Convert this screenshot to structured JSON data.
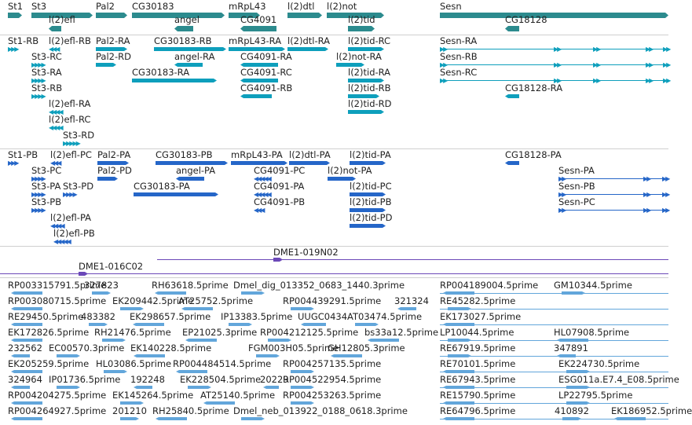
{
  "colors": {
    "gene": "#2c8b8e",
    "transcript_ra": "#0e9fbc",
    "transcript_pa": "#2566c8",
    "bac": "#6b48b8",
    "est": "#62a6db",
    "separator": "#cfcfcf"
  },
  "tracks": {
    "genes": {
      "items": [
        {
          "label": "St1",
          "dir": "r",
          "row": 0
        },
        {
          "label": "St3",
          "dir": "r",
          "row": 0
        },
        {
          "label": "Pal2",
          "dir": "r",
          "row": 0
        },
        {
          "label": "CG30183",
          "dir": "r",
          "row": 0
        },
        {
          "label": "mRpL43",
          "dir": "r",
          "row": 0
        },
        {
          "label": "l(2)dtl",
          "dir": "r",
          "row": 0
        },
        {
          "label": "l(2)not",
          "dir": "r",
          "row": 0
        },
        {
          "label": "Sesn",
          "dir": "r",
          "row": 0
        },
        {
          "label": "l(2)efl",
          "dir": "l",
          "row": 1
        },
        {
          "label": "angel",
          "dir": "l",
          "row": 1
        },
        {
          "label": "CG4091",
          "dir": "l",
          "row": 1
        },
        {
          "label": "l(2)tid",
          "dir": "r",
          "row": 1
        },
        {
          "label": "CG18128",
          "dir": "l",
          "row": 1
        }
      ]
    },
    "transcripts_r": {
      "items": [
        {
          "label": "St1-RB",
          "dir": "r"
        },
        {
          "label": "l(2)efl-RB",
          "dir": "l"
        },
        {
          "label": "Pal2-RA",
          "dir": "r"
        },
        {
          "label": "CG30183-RB",
          "dir": "r"
        },
        {
          "label": "mRpL43-RA",
          "dir": "r"
        },
        {
          "label": "l(2)dtl-RA",
          "dir": "r"
        },
        {
          "label": "l(2)tid-RC",
          "dir": "r"
        },
        {
          "label": "Sesn-RA",
          "dir": "r"
        },
        {
          "label": "St3-RC",
          "dir": "r"
        },
        {
          "label": "Pal2-RD",
          "dir": "r"
        },
        {
          "label": "angel-RA",
          "dir": "l"
        },
        {
          "label": "CG4091-RA",
          "dir": "l"
        },
        {
          "label": "l(2)not-RA",
          "dir": "r"
        },
        {
          "label": "Sesn-RB",
          "dir": "r"
        },
        {
          "label": "St3-RA",
          "dir": "r"
        },
        {
          "label": "CG30183-RA",
          "dir": "r"
        },
        {
          "label": "CG4091-RC",
          "dir": "l"
        },
        {
          "label": "l(2)tid-RA",
          "dir": "r"
        },
        {
          "label": "Sesn-RC",
          "dir": "r"
        },
        {
          "label": "St3-RB",
          "dir": "r"
        },
        {
          "label": "CG4091-RB",
          "dir": "l"
        },
        {
          "label": "l(2)tid-RB",
          "dir": "r"
        },
        {
          "label": "CG18128-RA",
          "dir": "l"
        },
        {
          "label": "l(2)efl-RA",
          "dir": "l"
        },
        {
          "label": "l(2)tid-RD",
          "dir": "r"
        },
        {
          "label": "l(2)efl-RC",
          "dir": "l"
        },
        {
          "label": "St3-RD",
          "dir": "r"
        }
      ]
    },
    "transcripts_p": {
      "items": [
        {
          "label": "St1-PB",
          "dir": "r"
        },
        {
          "label": "l(2)efl-PC",
          "dir": "l"
        },
        {
          "label": "Pal2-PA",
          "dir": "r"
        },
        {
          "label": "CG30183-PB",
          "dir": "r"
        },
        {
          "label": "mRpL43-PA",
          "dir": "r"
        },
        {
          "label": "l(2)dtl-PA",
          "dir": "r"
        },
        {
          "label": "l(2)tid-PA",
          "dir": "r"
        },
        {
          "label": "CG18128-PA",
          "dir": "l"
        },
        {
          "label": "St3-PC",
          "dir": "r"
        },
        {
          "label": "Pal2-PD",
          "dir": "r"
        },
        {
          "label": "angel-PA",
          "dir": "l"
        },
        {
          "label": "CG4091-PC",
          "dir": "l"
        },
        {
          "label": "l(2)not-PA",
          "dir": "r"
        },
        {
          "label": "Sesn-PA",
          "dir": "r"
        },
        {
          "label": "St3-PA",
          "dir": "r"
        },
        {
          "label": "St3-PD",
          "dir": "r"
        },
        {
          "label": "CG30183-PA",
          "dir": "r"
        },
        {
          "label": "CG4091-PA",
          "dir": "l"
        },
        {
          "label": "l(2)tid-PC",
          "dir": "r"
        },
        {
          "label": "Sesn-PB",
          "dir": "r"
        },
        {
          "label": "St3-PB",
          "dir": "r"
        },
        {
          "label": "CG4091-PB",
          "dir": "l"
        },
        {
          "label": "l(2)tid-PB",
          "dir": "r"
        },
        {
          "label": "Sesn-PC",
          "dir": "r"
        },
        {
          "label": "l(2)efl-PA",
          "dir": "l"
        },
        {
          "label": "l(2)tid-PD",
          "dir": "r"
        },
        {
          "label": "l(2)efl-PB",
          "dir": "l"
        }
      ]
    },
    "bacs": {
      "items": [
        {
          "label": "DME1-019N02"
        },
        {
          "label": "DME1-016C02"
        }
      ]
    },
    "ests": {
      "items": [
        "RP003315791.5prime",
        "327823",
        "RH63618.5prime",
        "Dmel_dig_013352_0683_1440.3prime",
        "RP004189004.5prime",
        "GM10344.5prime",
        "RP003080715.5prime",
        "EK209442.5prime",
        "AT25752.5prime",
        "RP004439291.5prime",
        "321324",
        "RE45282.5prime",
        "RE29450.5prime",
        "483382",
        "EK298657.5prime",
        "IP13383.5prime",
        "UUGC0434",
        "AT03474.5prime",
        "EK173027.5prime",
        "EK172826.5prime",
        "RH21476.5prime",
        "EP21025.3prime",
        "RP004212125.5prime",
        "bs33a12.5prime",
        "LP10044.5prime",
        "HL07908.5prime",
        "232562",
        "EC00570.3prime",
        "EK140228.5prime",
        "FGM003H05.5prime",
        "GH12805.3prime",
        "RE67919.5prime",
        "347891",
        "EK205259.5prime",
        "HL03086.5prime",
        "RP004484514.5prime",
        "RP004257135.5prime",
        "RE70101.5prime",
        "EK224730.5prime",
        "324964",
        "IP01736.5prime",
        "192248",
        "EK228504.5prime",
        "20229",
        "RP004522954.5prime",
        "RE67943.5prime",
        "ESG011a.E7.4_E08.5prime",
        "RP004204275.5prime",
        "EK145264.5prime",
        "AT25140.5prime",
        "RP004253263.5prime",
        "RE15790.5prime",
        "LP22795.5prime",
        "RP004264927.5prime",
        "201210",
        "RH25840.5prime",
        "Dmel_neb_013922_0188_0618.3prime",
        "RE64796.5prime",
        "410892",
        "EK186952.5prime"
      ]
    }
  }
}
